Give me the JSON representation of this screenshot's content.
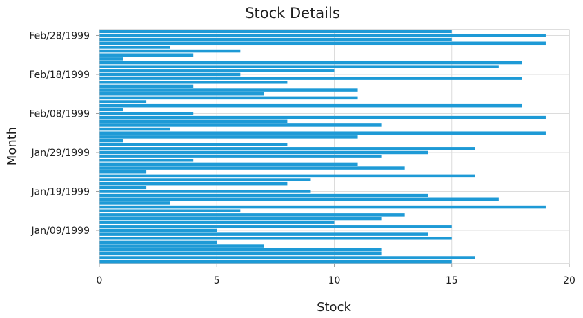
{
  "chart_data": {
    "type": "bar",
    "orientation": "horizontal",
    "title": "Stock Details",
    "xlabel": "Stock",
    "ylabel": "Month",
    "xlim": [
      0,
      20
    ],
    "x_ticks": [
      0,
      5,
      10,
      15,
      20
    ],
    "grid": true,
    "legend": "none",
    "bar_color": "#1e9ad6",
    "y_tick_labels": [
      "Jan/09/1999",
      "Jan/19/1999",
      "Jan/29/1999",
      "Feb/08/1999",
      "Feb/18/1999",
      "Feb/28/1999"
    ],
    "categories": [
      "1999-01-01",
      "1999-01-02",
      "1999-01-03",
      "1999-01-04",
      "1999-01-05",
      "1999-01-06",
      "1999-01-07",
      "1999-01-08",
      "1999-01-09",
      "1999-01-10",
      "1999-01-11",
      "1999-01-12",
      "1999-01-13",
      "1999-01-14",
      "1999-01-15",
      "1999-01-16",
      "1999-01-17",
      "1999-01-18",
      "1999-01-19",
      "1999-01-20",
      "1999-01-21",
      "1999-01-22",
      "1999-01-23",
      "1999-01-24",
      "1999-01-25",
      "1999-01-26",
      "1999-01-27",
      "1999-01-28",
      "1999-01-29",
      "1999-01-30",
      "1999-01-31",
      "1999-02-01",
      "1999-02-02",
      "1999-02-03",
      "1999-02-04",
      "1999-02-05",
      "1999-02-06",
      "1999-02-07",
      "1999-02-08",
      "1999-02-09",
      "1999-02-10",
      "1999-02-11",
      "1999-02-12",
      "1999-02-13",
      "1999-02-14",
      "1999-02-15",
      "1999-02-16",
      "1999-02-17",
      "1999-02-18",
      "1999-02-19",
      "1999-02-20",
      "1999-02-21",
      "1999-02-22",
      "1999-02-23",
      "1999-02-24",
      "1999-02-25",
      "1999-02-26",
      "1999-02-27",
      "1999-02-28",
      "1999-03-01"
    ],
    "values": [
      15,
      16,
      12,
      12,
      7,
      5,
      15,
      14,
      5,
      15,
      10,
      12,
      13,
      6,
      19,
      3,
      17,
      14,
      9,
      2,
      8,
      9,
      16,
      2,
      13,
      11,
      4,
      12,
      14,
      16,
      8,
      1,
      11,
      19,
      3,
      12,
      8,
      19,
      4,
      1,
      18,
      2,
      11,
      7,
      11,
      4,
      8,
      18,
      6,
      10,
      17,
      18,
      1,
      4,
      6,
      3,
      19,
      15,
      19,
      15
    ]
  }
}
